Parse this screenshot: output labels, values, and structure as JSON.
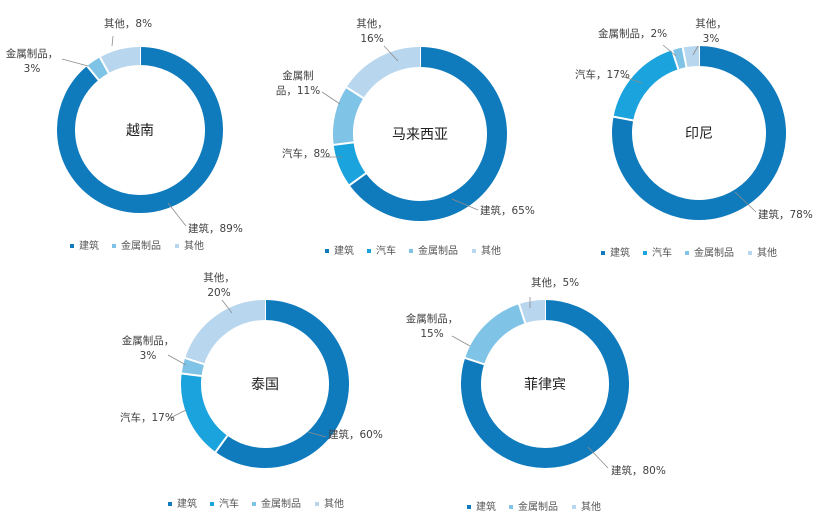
{
  "colors": {
    "建筑": "#0f7bbd",
    "汽车": "#1aa3dc",
    "金属制品": "#7fc3e6",
    "其他": "#b8d6ee"
  },
  "chart_data": [
    {
      "type": "pie",
      "title": "越南",
      "series": [
        {
          "name": "建筑",
          "value": 89,
          "label": "建筑，89%"
        },
        {
          "name": "金属制品",
          "value": 3,
          "label": "金属制品，\n3%"
        },
        {
          "name": "其他",
          "value": 8,
          "label": "其他，8%"
        }
      ],
      "legend": [
        "建筑",
        "金属制品",
        "其他"
      ]
    },
    {
      "type": "pie",
      "title": "马来西亚",
      "series": [
        {
          "name": "建筑",
          "value": 65,
          "label": "建筑，65%"
        },
        {
          "name": "汽车",
          "value": 8,
          "label": "汽车，8%"
        },
        {
          "name": "金属制品",
          "value": 11,
          "label": "金属制\n品，11%"
        },
        {
          "name": "其他",
          "value": 16,
          "label": "其他，\n16%"
        }
      ],
      "legend": [
        "建筑",
        "汽车",
        "金属制品",
        "其他"
      ]
    },
    {
      "type": "pie",
      "title": "印尼",
      "series": [
        {
          "name": "建筑",
          "value": 78,
          "label": "建筑，78%"
        },
        {
          "name": "汽车",
          "value": 17,
          "label": "汽车，17%"
        },
        {
          "name": "金属制品",
          "value": 2,
          "label": "金属制品，2%"
        },
        {
          "name": "其他",
          "value": 3,
          "label": "其他，\n3%"
        }
      ],
      "legend": [
        "建筑",
        "汽车",
        "金属制品",
        "其他"
      ]
    },
    {
      "type": "pie",
      "title": "泰国",
      "series": [
        {
          "name": "建筑",
          "value": 60,
          "label": "建筑，60%"
        },
        {
          "name": "汽车",
          "value": 17,
          "label": "汽车，17%"
        },
        {
          "name": "金属制品",
          "value": 3,
          "label": "金属制品，\n3%"
        },
        {
          "name": "其他",
          "value": 20,
          "label": "其他，\n20%"
        }
      ],
      "legend": [
        "建筑",
        "汽车",
        "金属制品",
        "其他"
      ]
    },
    {
      "type": "pie",
      "title": "菲律宾",
      "series": [
        {
          "name": "建筑",
          "value": 80,
          "label": "建筑，80%"
        },
        {
          "name": "金属制品",
          "value": 15,
          "label": "金属制品，\n15%"
        },
        {
          "name": "其他",
          "value": 5,
          "label": "其他，5%"
        }
      ],
      "legend": [
        "建筑",
        "金属制品",
        "其他"
      ]
    }
  ]
}
